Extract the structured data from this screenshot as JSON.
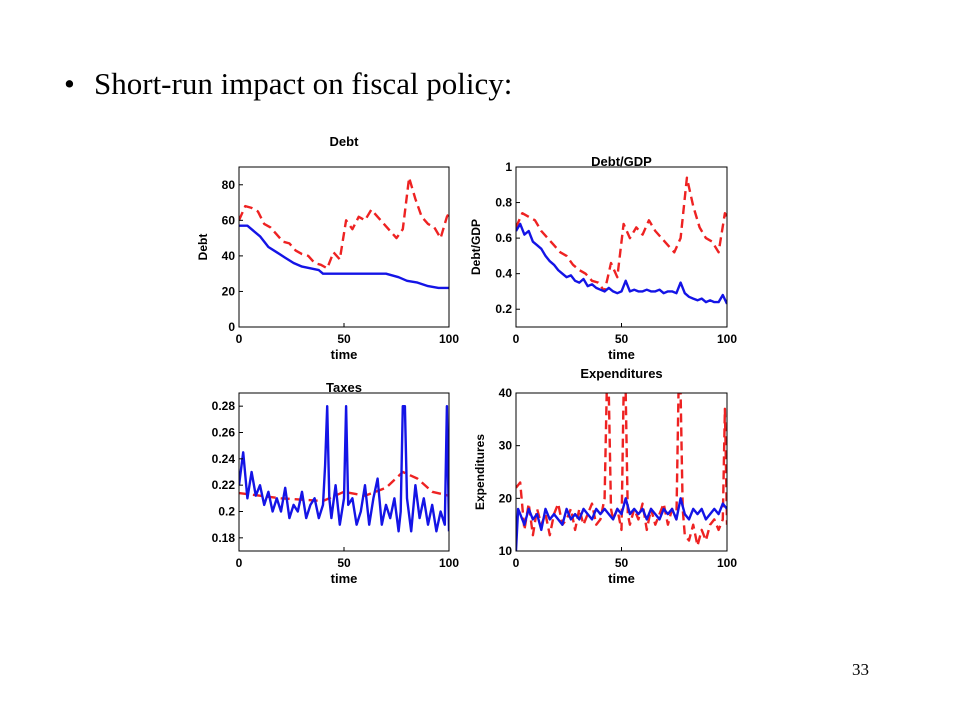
{
  "slide": {
    "bullet_symbol": "•",
    "bullet_text": "Short-run impact on fiscal policy:",
    "page_number": "33"
  },
  "colors": {
    "solid": "#1414e6",
    "dashed": "#ee2222"
  },
  "chart_data": [
    {
      "id": "debt",
      "type": "line",
      "title": "Debt",
      "xlabel": "time",
      "ylabel": "Debt",
      "xlim": [
        0,
        100
      ],
      "ylim": [
        0,
        90
      ],
      "xticks": [
        0,
        50,
        100
      ],
      "yticks": [
        0,
        20,
        40,
        60,
        80
      ],
      "ytick_labels": [
        "0",
        "20",
        "40",
        "60",
        "80"
      ],
      "series": [
        {
          "style": "dashed",
          "x": [
            0,
            3,
            6,
            9,
            12,
            15,
            18,
            21,
            24,
            27,
            30,
            33,
            36,
            39,
            42,
            45,
            48,
            51,
            54,
            57,
            60,
            63,
            66,
            69,
            72,
            75,
            78,
            81,
            84,
            87,
            90,
            93,
            96,
            99,
            100
          ],
          "y": [
            60,
            68,
            67,
            65,
            58,
            56,
            52,
            48,
            47,
            43,
            41,
            40,
            36,
            35,
            33,
            42,
            38,
            60,
            55,
            62,
            60,
            66,
            62,
            58,
            54,
            50,
            55,
            84,
            72,
            62,
            58,
            56,
            50,
            62,
            64
          ]
        },
        {
          "style": "solid",
          "x": [
            0,
            4,
            8,
            10,
            14,
            18,
            22,
            26,
            30,
            34,
            38,
            40,
            44,
            50,
            60,
            70,
            76,
            80,
            85,
            90,
            95,
            100
          ],
          "y": [
            57,
            57,
            53,
            51,
            45,
            42,
            39,
            36,
            34,
            33,
            32,
            30,
            30,
            30,
            30,
            30,
            28,
            26,
            25,
            23,
            22,
            22
          ]
        }
      ]
    },
    {
      "id": "debt_gdp",
      "type": "line",
      "title": "Debt/GDP",
      "xlabel": "time",
      "ylabel": "Debt/GDP",
      "xlim": [
        0,
        100
      ],
      "ylim": [
        0.1,
        1
      ],
      "xticks": [
        0,
        50,
        100
      ],
      "yticks": [
        0.2,
        0.4,
        0.6,
        0.8,
        1
      ],
      "ytick_labels": [
        "0.2",
        "0.4",
        "0.6",
        "0.8",
        "1"
      ],
      "series": [
        {
          "style": "dashed",
          "x": [
            0,
            3,
            6,
            9,
            12,
            15,
            18,
            21,
            24,
            27,
            30,
            33,
            36,
            39,
            42,
            45,
            48,
            51,
            54,
            57,
            60,
            63,
            66,
            69,
            72,
            75,
            78,
            81,
            84,
            87,
            90,
            93,
            96,
            99,
            100
          ],
          "y": [
            0.66,
            0.74,
            0.72,
            0.7,
            0.64,
            0.6,
            0.56,
            0.52,
            0.5,
            0.45,
            0.42,
            0.4,
            0.36,
            0.35,
            0.3,
            0.46,
            0.38,
            0.68,
            0.6,
            0.66,
            0.62,
            0.7,
            0.64,
            0.6,
            0.56,
            0.52,
            0.6,
            0.94,
            0.78,
            0.66,
            0.6,
            0.58,
            0.52,
            0.74,
            0.72
          ]
        },
        {
          "style": "solid",
          "x": [
            0,
            2,
            4,
            6,
            8,
            10,
            12,
            14,
            16,
            18,
            20,
            22,
            24,
            26,
            28,
            30,
            32,
            34,
            36,
            38,
            40,
            42,
            44,
            46,
            48,
            50,
            52,
            54,
            56,
            58,
            60,
            62,
            64,
            66,
            68,
            70,
            72,
            74,
            76,
            78,
            80,
            82,
            84,
            86,
            88,
            90,
            92,
            94,
            96,
            98,
            100
          ],
          "y": [
            0.64,
            0.68,
            0.62,
            0.64,
            0.58,
            0.56,
            0.54,
            0.5,
            0.47,
            0.45,
            0.42,
            0.4,
            0.38,
            0.39,
            0.36,
            0.35,
            0.37,
            0.33,
            0.34,
            0.32,
            0.31,
            0.3,
            0.32,
            0.3,
            0.29,
            0.3,
            0.36,
            0.3,
            0.31,
            0.3,
            0.3,
            0.31,
            0.3,
            0.3,
            0.31,
            0.29,
            0.3,
            0.3,
            0.29,
            0.35,
            0.29,
            0.27,
            0.26,
            0.25,
            0.26,
            0.24,
            0.25,
            0.24,
            0.24,
            0.28,
            0.23
          ]
        }
      ]
    },
    {
      "id": "taxes",
      "type": "line",
      "title": "Taxes",
      "xlabel": "time",
      "ylabel": "",
      "xlim": [
        0,
        100
      ],
      "ylim": [
        0.17,
        0.29
      ],
      "xticks": [
        0,
        50,
        100
      ],
      "yticks": [
        0.18,
        0.2,
        0.22,
        0.24,
        0.26,
        0.28
      ],
      "ytick_labels": [
        "0.18",
        "0.2",
        "0.22",
        "0.24",
        "0.26",
        "0.28"
      ],
      "series": [
        {
          "style": "dashed",
          "x": [
            0,
            10,
            20,
            30,
            40,
            50,
            60,
            70,
            78,
            85,
            92,
            100
          ],
          "y": [
            0.214,
            0.212,
            0.21,
            0.209,
            0.208,
            0.215,
            0.212,
            0.218,
            0.23,
            0.225,
            0.215,
            0.212
          ]
        },
        {
          "style": "solid",
          "x": [
            0,
            2,
            4,
            6,
            8,
            10,
            12,
            14,
            16,
            18,
            20,
            22,
            24,
            26,
            28,
            30,
            32,
            34,
            36,
            38,
            40,
            41,
            42,
            43,
            44,
            46,
            48,
            50,
            51,
            52,
            54,
            56,
            58,
            60,
            62,
            64,
            66,
            68,
            70,
            72,
            74,
            76,
            77,
            78,
            79,
            80,
            82,
            84,
            86,
            88,
            90,
            92,
            94,
            96,
            98,
            99,
            100
          ],
          "y": [
            0.22,
            0.245,
            0.21,
            0.23,
            0.212,
            0.22,
            0.205,
            0.215,
            0.2,
            0.21,
            0.2,
            0.218,
            0.195,
            0.205,
            0.2,
            0.215,
            0.195,
            0.205,
            0.21,
            0.195,
            0.205,
            0.235,
            0.28,
            0.21,
            0.195,
            0.22,
            0.19,
            0.21,
            0.28,
            0.205,
            0.21,
            0.19,
            0.2,
            0.22,
            0.19,
            0.21,
            0.225,
            0.19,
            0.205,
            0.195,
            0.21,
            0.185,
            0.2,
            0.28,
            0.28,
            0.21,
            0.185,
            0.22,
            0.195,
            0.21,
            0.19,
            0.205,
            0.185,
            0.2,
            0.19,
            0.28,
            0.185
          ]
        }
      ]
    },
    {
      "id": "expenditures",
      "type": "line",
      "title": "Expenditures",
      "xlabel": "time",
      "ylabel": "Expenditures",
      "xlim": [
        0,
        100
      ],
      "ylim": [
        10,
        40
      ],
      "xticks": [
        0,
        50,
        100
      ],
      "yticks": [
        10,
        20,
        30,
        40
      ],
      "ytick_labels": [
        "10",
        "20",
        "30",
        "40"
      ],
      "series": [
        {
          "style": "dashed",
          "x": [
            0,
            2,
            4,
            6,
            8,
            10,
            12,
            14,
            16,
            18,
            20,
            22,
            24,
            26,
            28,
            30,
            32,
            34,
            36,
            38,
            40,
            42,
            43,
            44,
            45,
            46,
            48,
            50,
            51,
            52,
            53,
            54,
            56,
            58,
            60,
            62,
            64,
            66,
            68,
            70,
            72,
            74,
            76,
            77,
            78,
            79,
            80,
            82,
            84,
            86,
            88,
            90,
            92,
            94,
            96,
            98,
            99,
            100
          ],
          "y": [
            22,
            23,
            14,
            19,
            13,
            18,
            15,
            17,
            13,
            17,
            19,
            15,
            16,
            18,
            14,
            18,
            15,
            17,
            19,
            15,
            16,
            20,
            40,
            40,
            18,
            16,
            18,
            14,
            40,
            40,
            17,
            15,
            18,
            16,
            19,
            14,
            18,
            15,
            17,
            19,
            15,
            18,
            16,
            40,
            40,
            18,
            13,
            12,
            15,
            11,
            14,
            12,
            15,
            16,
            14,
            16,
            37,
            15
          ]
        },
        {
          "style": "solid",
          "x": [
            0,
            1,
            2,
            4,
            6,
            8,
            10,
            12,
            14,
            16,
            18,
            20,
            22,
            24,
            26,
            28,
            30,
            32,
            34,
            36,
            38,
            40,
            42,
            44,
            46,
            48,
            50,
            52,
            54,
            56,
            58,
            60,
            62,
            64,
            66,
            68,
            70,
            72,
            74,
            76,
            78,
            80,
            82,
            84,
            86,
            88,
            90,
            92,
            94,
            96,
            98,
            100
          ],
          "y": [
            10,
            18,
            17,
            15,
            18,
            16,
            17,
            14,
            18,
            16,
            17,
            16,
            15,
            18,
            16,
            17,
            16,
            18,
            17,
            16,
            18,
            17,
            18,
            17,
            16,
            18,
            17,
            20,
            17,
            18,
            17,
            18,
            16,
            18,
            17,
            16,
            18,
            17,
            18,
            16,
            20,
            17,
            16,
            18,
            17,
            18,
            16,
            17,
            18,
            17,
            19,
            18
          ]
        }
      ]
    }
  ]
}
